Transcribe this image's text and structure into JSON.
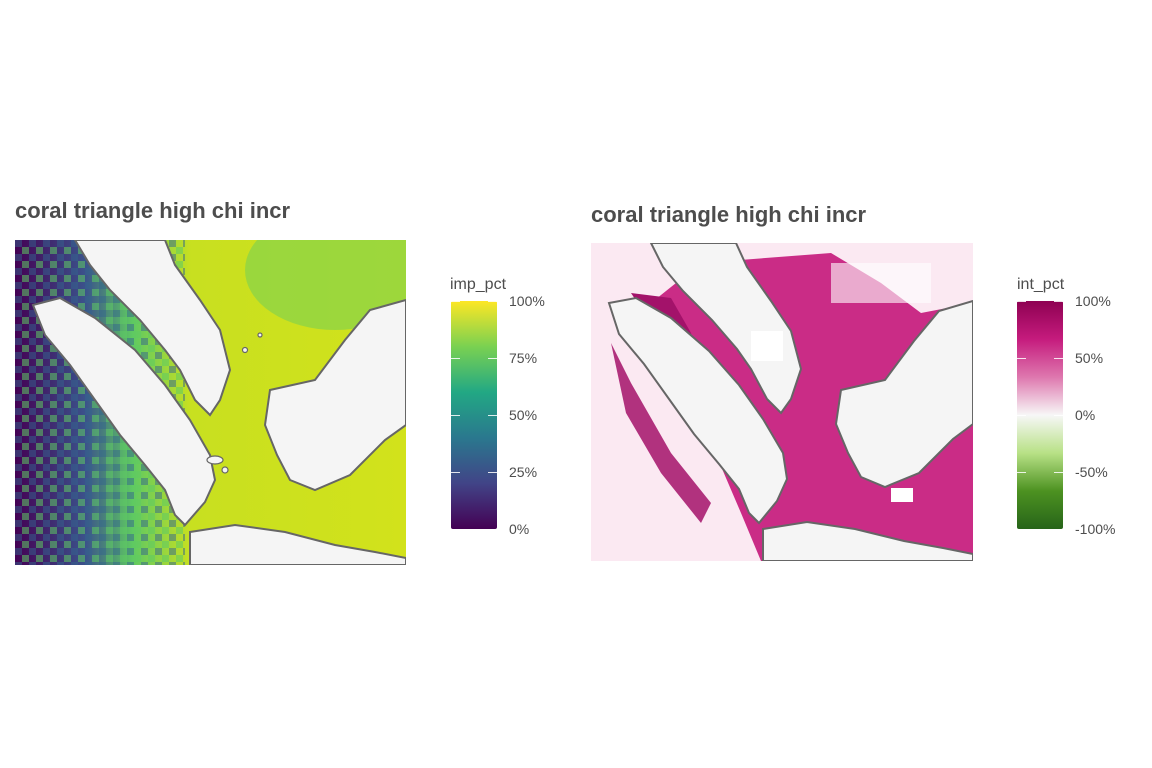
{
  "panels": [
    {
      "title": "coral triangle high chi incr",
      "legend": {
        "title": "imp_pct",
        "ticks": [
          "100%",
          "75%",
          "50%",
          "25%",
          "0%"
        ],
        "tick_values": [
          100,
          75,
          50,
          25,
          0
        ],
        "colors": [
          "#fde725",
          "#7ad151",
          "#22a884",
          "#2a788e",
          "#414487",
          "#440154"
        ]
      },
      "land_color": "#f5f5f5",
      "coast_color": "#666666"
    },
    {
      "title": "coral triangle high chi incr",
      "legend": {
        "title": "int_pct",
        "ticks": [
          "100%",
          "50%",
          "0%",
          "-50%",
          "-100%"
        ],
        "tick_values": [
          100,
          50,
          0,
          -50,
          -100
        ],
        "colors": [
          "#8e0152",
          "#c51b7d",
          "#de77ae",
          "#f7f7f7",
          "#b8e186",
          "#4d9221",
          "#276419"
        ]
      },
      "land_color": "#f5f5f5",
      "coast_color": "#666666"
    }
  ]
}
